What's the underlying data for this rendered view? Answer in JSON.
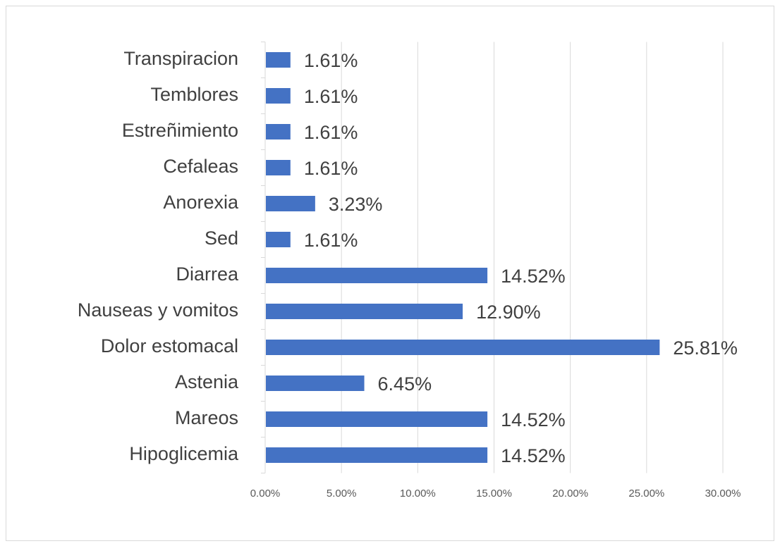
{
  "chart_data": {
    "type": "bar",
    "orientation": "horizontal",
    "categories": [
      "Hipoglicemia",
      "Mareos",
      "Astenia",
      "Dolor estomacal",
      "Nauseas y vomitos",
      "Diarrea",
      "Sed",
      "Anorexia",
      "Cefaleas",
      "Estreñimiento",
      "Temblores",
      "Transpiracion"
    ],
    "values": [
      14.52,
      14.52,
      6.45,
      25.81,
      12.9,
      14.52,
      1.61,
      3.23,
      1.61,
      1.61,
      1.61,
      1.61
    ],
    "value_labels": [
      "14.52%",
      "14.52%",
      "6.45%",
      "25.81%",
      "12.90%",
      "14.52%",
      "1.61%",
      "3.23%",
      "1.61%",
      "1.61%",
      "1.61%",
      "1.61%"
    ],
    "color": "#4472c4",
    "xlim": [
      0,
      30
    ],
    "xticks": [
      {
        "value": 0,
        "label": "0.00%"
      },
      {
        "value": 5,
        "label": "5.00%"
      },
      {
        "value": 10,
        "label": "10.00%"
      },
      {
        "value": 15,
        "label": "15.00%"
      },
      {
        "value": 20,
        "label": "20.00%"
      },
      {
        "value": 25,
        "label": "25.00%"
      },
      {
        "value": 30,
        "label": "30.00%"
      }
    ],
    "grid": true
  }
}
